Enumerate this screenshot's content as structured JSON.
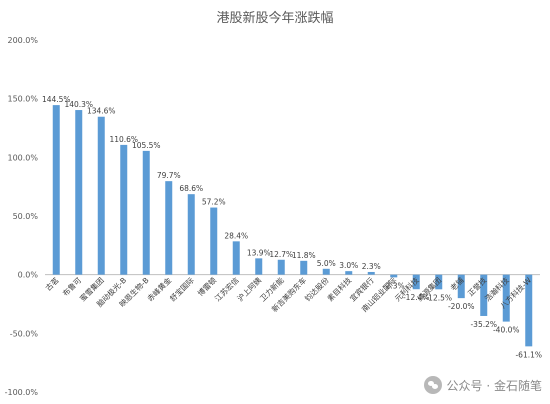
{
  "chart_data": {
    "type": "bar",
    "title": "港股新股今年涨跌幅",
    "xlabel": "",
    "ylabel": "",
    "ylim": [
      -100,
      200
    ],
    "yticks": [
      "200.0%",
      "150.0%",
      "100.0%",
      "50.0%",
      "0.0%",
      "-50.0%",
      "-100.0%"
    ],
    "ytick_values": [
      200,
      150,
      100,
      50,
      0,
      -50,
      -100
    ],
    "grid": false,
    "bar_color": "#5B9BD5",
    "categories": [
      "古茗",
      "布鲁可",
      "蜜雪集团",
      "脑动极光-B",
      "映恩生物-B",
      "赤峰黄金",
      "舒宝国际",
      "博雷顿",
      "江苏宏信",
      "沪上阿姨",
      "卫力新能",
      "新吉美购东车",
      "钧达股份",
      "素目科技",
      "宜宾银行",
      "南山铝业国际",
      "元利科技",
      "绿源集团",
      "老铺",
      "正誉技",
      "浩瀚科技",
      "八方科技-W"
    ],
    "values": [
      144.5,
      140.3,
      134.6,
      110.6,
      105.5,
      79.7,
      68.6,
      57.2,
      28.4,
      13.9,
      12.7,
      11.8,
      5.0,
      3.0,
      2.3,
      -2.3,
      -12.4,
      -12.5,
      -20.0,
      -35.2,
      -40.0,
      -61.1
    ],
    "data_labels": [
      "144.5%",
      "140.3%",
      "134.6%",
      "110.6%",
      "105.5%",
      "79.7%",
      "68.6%",
      "57.2%",
      "28.4%",
      "13.9%",
      "12.7%",
      "11.8%",
      "5.0%",
      "3.0%",
      "2.3%",
      "-2.3%",
      "-12.4%",
      "-12.5%",
      "-20.0%",
      "-35.2%",
      "-40.0%",
      "-61.1%"
    ]
  },
  "watermark": {
    "text": "公众号 · 金石随笔",
    "icon": "wechat-icon"
  }
}
